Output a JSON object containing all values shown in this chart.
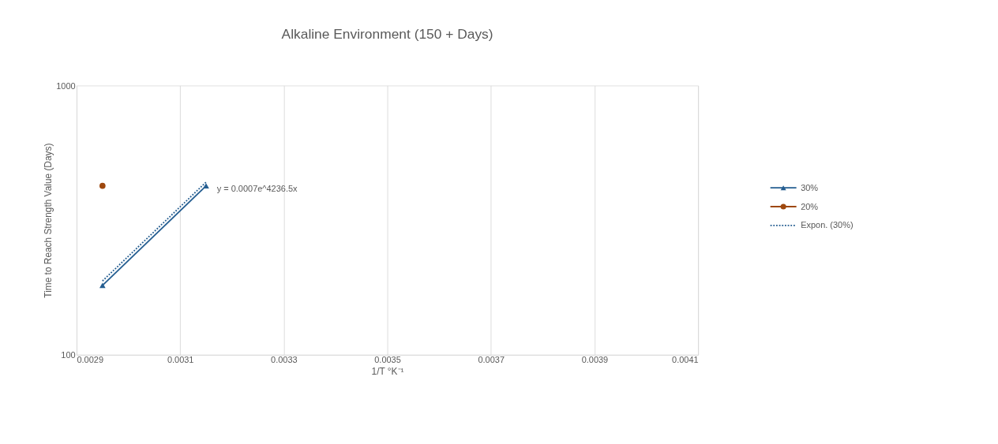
{
  "chart_data": {
    "type": "line",
    "title": "Alkaline Environment (150 + Days)",
    "xlabel": "1/T °K⁻¹",
    "ylabel": "Time to Reach Strength Value (Days)",
    "xlim": [
      0.0029,
      0.0041
    ],
    "xticks": [
      0.0029,
      0.0031,
      0.0033,
      0.0035,
      0.0037,
      0.0039,
      0.0041
    ],
    "ylim": [
      100,
      1000
    ],
    "yticks": [
      100,
      1000
    ],
    "log": true,
    "grid": "x",
    "legend": "right",
    "x": [
      0.00295,
      0.00315
    ],
    "series": [
      {
        "name": "30%",
        "color": "#255e91",
        "marker": "triangle",
        "line_style": "solid",
        "values": [
          181,
          424
        ]
      },
      {
        "name": "20%",
        "color": "#9e480e",
        "marker": "circle",
        "line_style": "solid",
        "values": [
          424,
          null
        ]
      },
      {
        "name": "Expon. (30%)",
        "color": "#255e91",
        "marker": "none",
        "line_style": "dotted",
        "values": [
          188,
          438
        ]
      }
    ],
    "annotations": [
      {
        "text": "y = 0.0007e^4236.5x",
        "x": 0.00315,
        "y": 424
      }
    ]
  }
}
